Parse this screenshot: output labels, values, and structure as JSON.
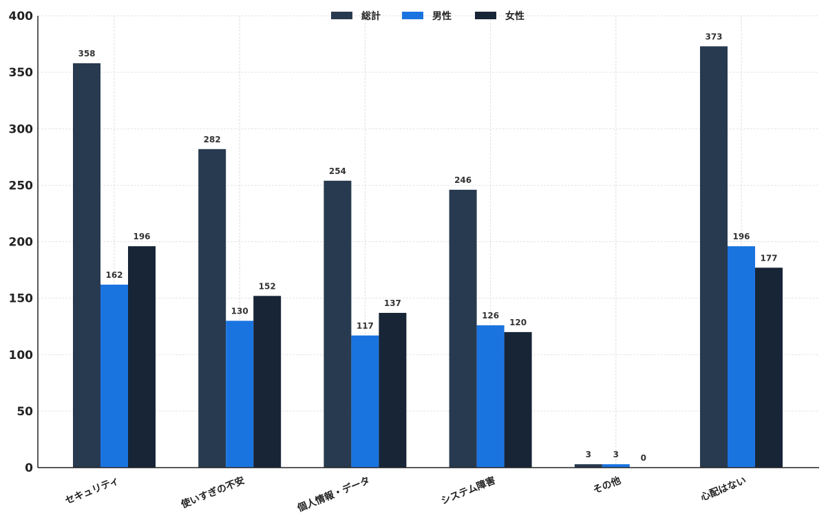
{
  "chart_data": {
    "type": "bar",
    "title": "",
    "xlabel": "",
    "ylabel": "",
    "ylim": [
      0,
      400
    ],
    "yticks": [
      0,
      50,
      100,
      150,
      200,
      250,
      300,
      350,
      400
    ],
    "grid": true,
    "legend_position": "top-center",
    "categories": [
      "セキュリティ",
      "使いすぎの不安",
      "個人情報・データ",
      "システム障害",
      "その他",
      "心配はない"
    ],
    "series": [
      {
        "name": "総計",
        "color": "#283a4f",
        "values": [
          358,
          282,
          254,
          246,
          3,
          373
        ]
      },
      {
        "name": "男性",
        "color": "#1a74e0",
        "values": [
          162,
          130,
          117,
          126,
          3,
          196
        ]
      },
      {
        "name": "女性",
        "color": "#172537",
        "values": [
          196,
          152,
          137,
          120,
          0,
          177
        ]
      }
    ]
  }
}
